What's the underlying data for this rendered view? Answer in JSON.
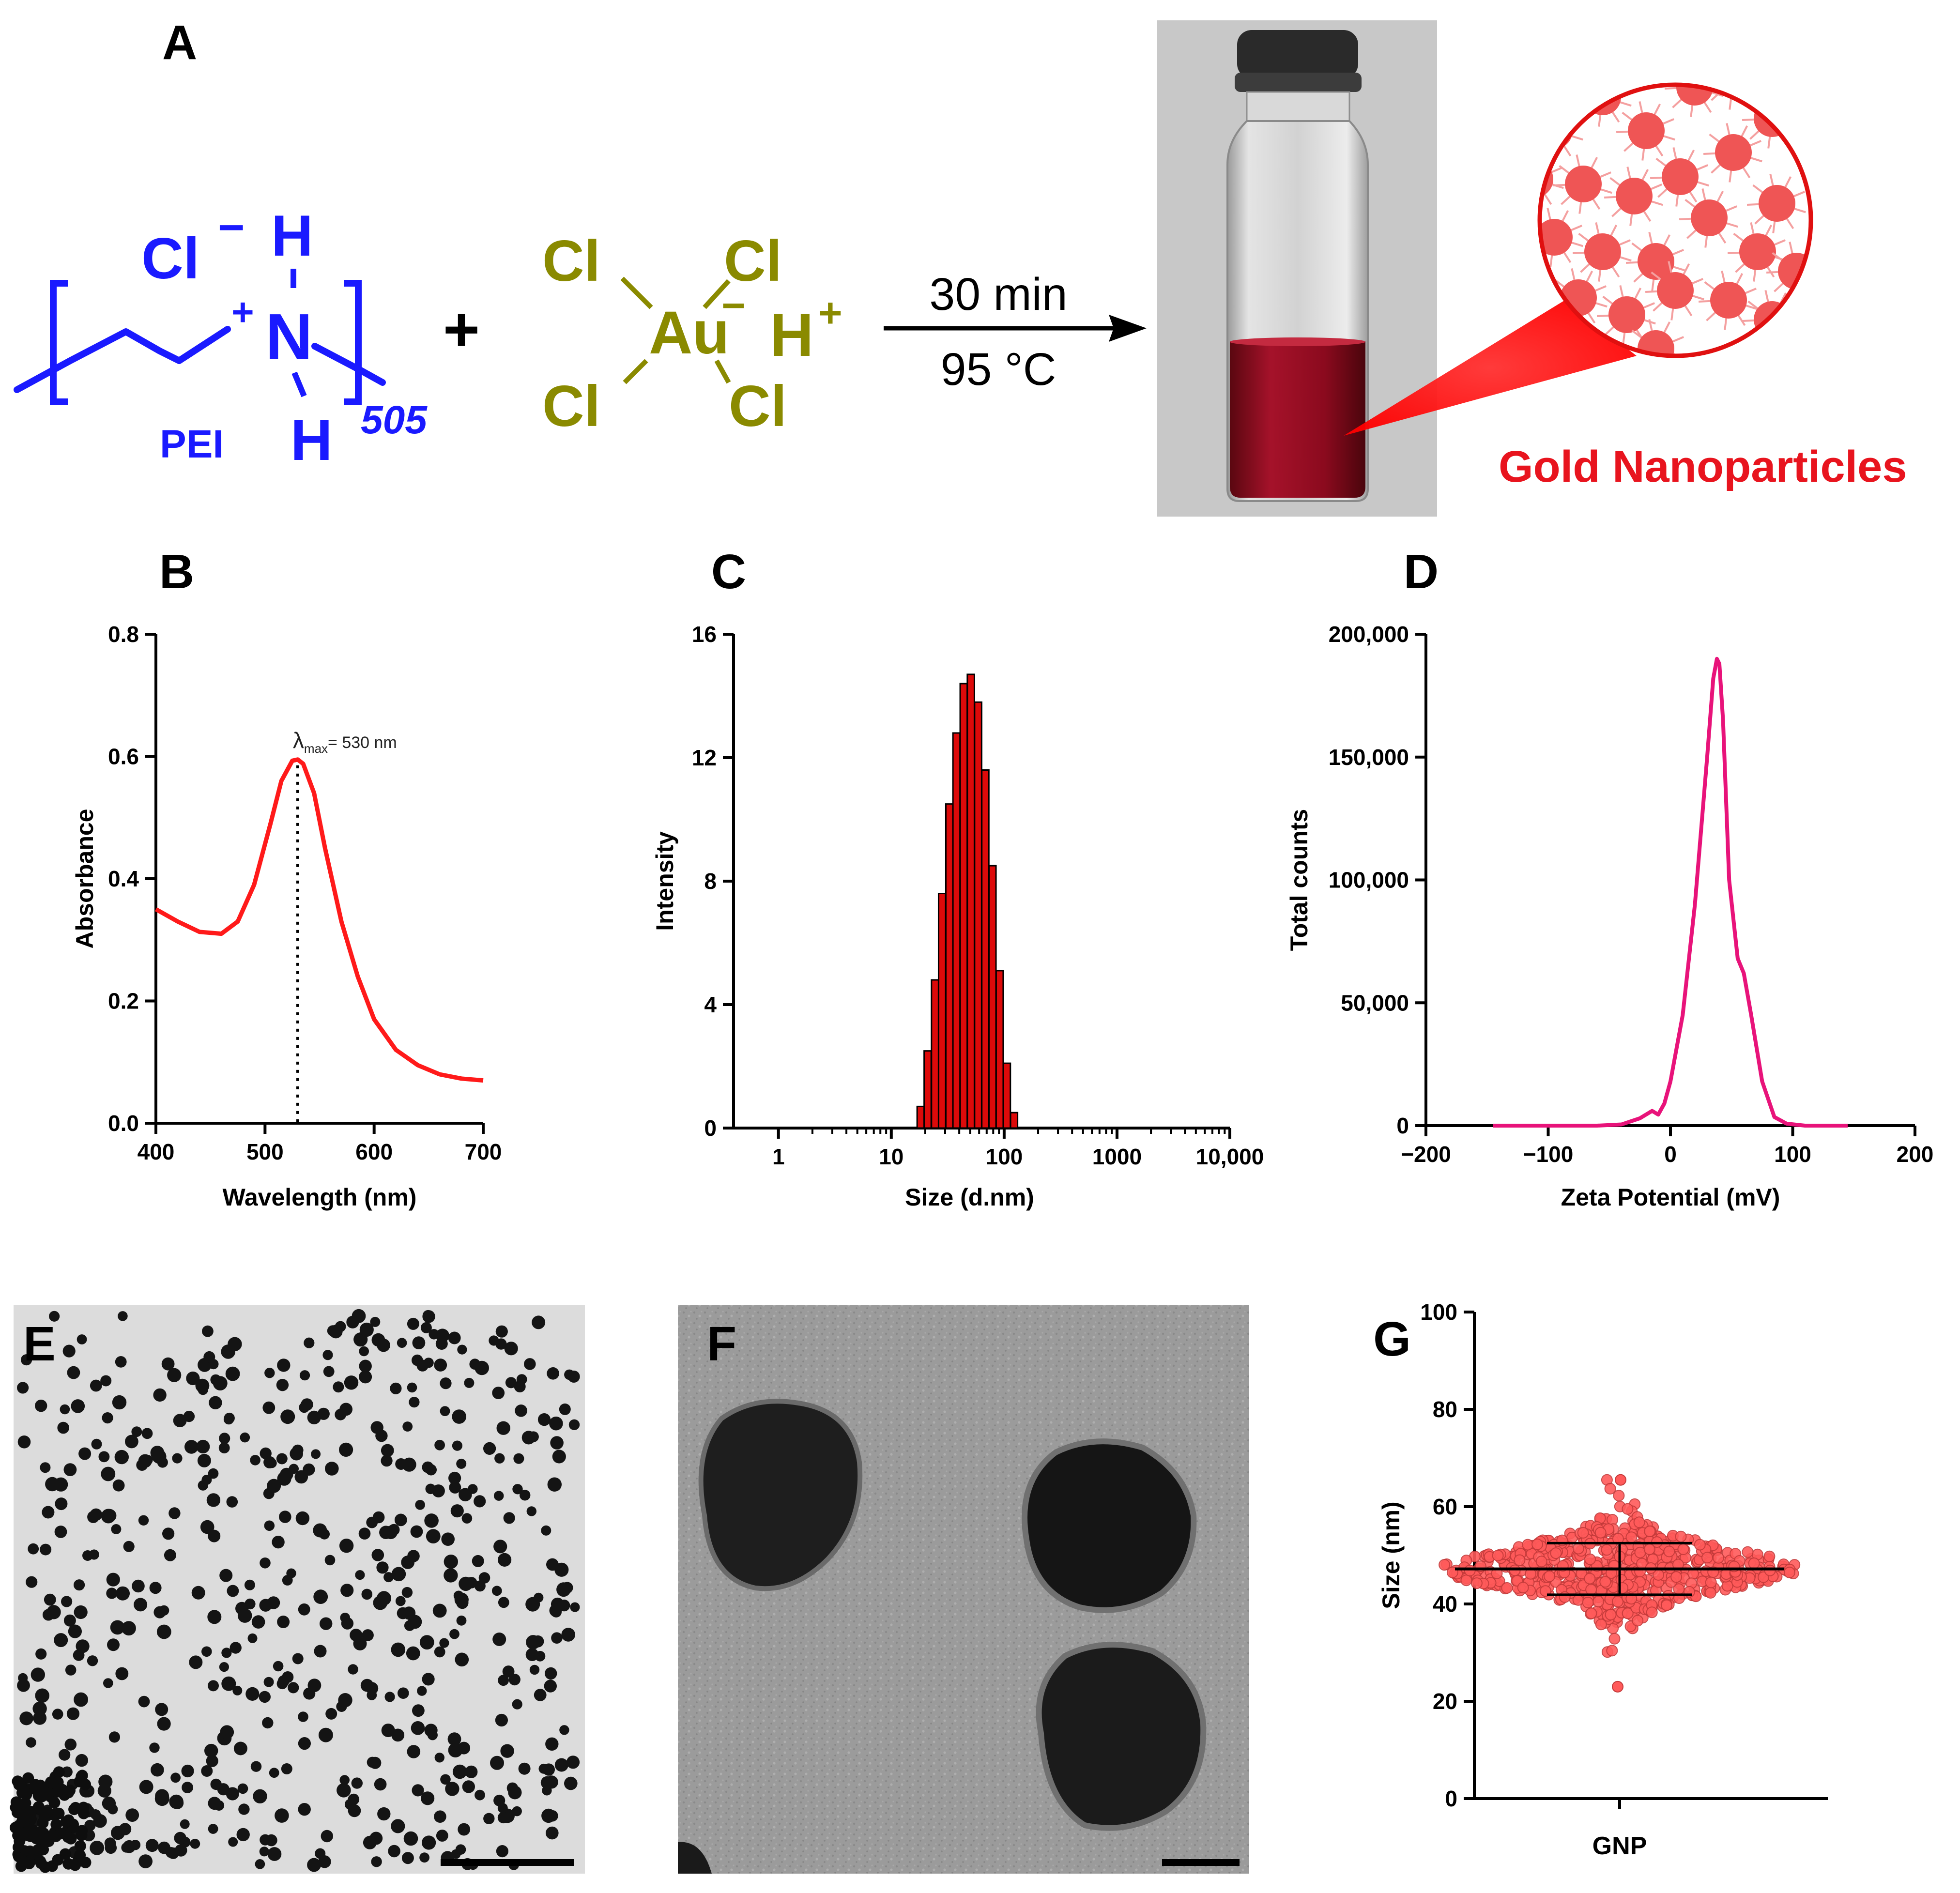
{
  "panels": {
    "A": {
      "letter": "A",
      "pei": {
        "chloride": "Cl",
        "chloride_charge": "−",
        "h_top": "H",
        "plus": "+",
        "n": "N",
        "h_bottom": "H",
        "label": "PEI",
        "subscript": "505"
      },
      "plus_sign": "+",
      "gold_salt": {
        "cl1": "Cl",
        "cl2": "Cl",
        "cl3": "Cl",
        "cl4": "Cl",
        "au": "Au",
        "au_charge": "−",
        "h": "H",
        "h_charge": "+"
      },
      "condition_time": "30 min",
      "condition_temp": "95 °C",
      "product_label": "Gold Nanoparticles",
      "colors": {
        "pei": "#1a1aff",
        "haucl4": "#8a8a00",
        "gold": "#e8141e",
        "solution": "#8b0a1e"
      }
    },
    "E": {
      "letter": "E"
    },
    "F": {
      "letter": "F"
    }
  },
  "chart_data": [
    {
      "panel": "B",
      "type": "line",
      "title": "",
      "xlabel": "Wavelength (nm)",
      "ylabel": "Absorbance",
      "xlim": [
        400,
        700
      ],
      "ylim": [
        0,
        0.8
      ],
      "xticks": [
        "400",
        "500",
        "600",
        "700"
      ],
      "yticks": [
        "0.0",
        "0.2",
        "0.4",
        "0.6",
        "0.8"
      ],
      "annotation": {
        "symbol": "λ",
        "sub": "max",
        "text": "= 530 nm",
        "x": 530
      },
      "color": "#ff1a1a",
      "x": [
        400,
        420,
        440,
        460,
        475,
        490,
        505,
        515,
        525,
        530,
        535,
        545,
        555,
        570,
        585,
        600,
        620,
        640,
        660,
        680,
        700
      ],
      "y": [
        0.35,
        0.33,
        0.313,
        0.31,
        0.33,
        0.39,
        0.49,
        0.56,
        0.593,
        0.595,
        0.588,
        0.54,
        0.45,
        0.33,
        0.24,
        0.17,
        0.12,
        0.095,
        0.08,
        0.073,
        0.07
      ]
    },
    {
      "panel": "C",
      "type": "bar",
      "title": "",
      "xlabel": "Size (d.nm)",
      "ylabel": "Intensity",
      "xscale": "log",
      "xlim": [
        0.4,
        10000
      ],
      "ylim": [
        0,
        16
      ],
      "xticks": [
        "1",
        "10",
        "100",
        "1000",
        "10,000"
      ],
      "yticks": [
        "0",
        "4",
        "8",
        "12",
        "16"
      ],
      "color": "#dd0a0a",
      "x": [
        18.2,
        21.0,
        24.4,
        28.2,
        32.7,
        37.8,
        43.8,
        50.7,
        58.8,
        68.1,
        78.8,
        91.3,
        105.7,
        122.4
      ],
      "values": [
        0.7,
        2.5,
        4.8,
        7.6,
        10.5,
        12.8,
        14.4,
        14.7,
        13.8,
        11.6,
        8.5,
        5.1,
        2.1,
        0.5
      ]
    },
    {
      "panel": "D",
      "type": "line",
      "title": "",
      "xlabel": "Zeta Potential (mV)",
      "ylabel": "Total counts",
      "xlim": [
        -200,
        200
      ],
      "ylim": [
        0,
        200000
      ],
      "xticks": [
        "−200",
        "−100",
        "0",
        "100",
        "200"
      ],
      "yticks": [
        "0",
        "50,000",
        "100,000",
        "150,000",
        "200,000"
      ],
      "color": "#e8137a",
      "x": [
        -145,
        -60,
        -40,
        -25,
        -15,
        -10,
        -5,
        0,
        10,
        20,
        30,
        35,
        38,
        40,
        43,
        48,
        55,
        60,
        66,
        75,
        85,
        95,
        110,
        145
      ],
      "y": [
        0,
        0,
        500,
        3000,
        6000,
        4500,
        9000,
        18000,
        45000,
        90000,
        150000,
        182000,
        190000,
        188000,
        165000,
        100000,
        68000,
        62000,
        45000,
        18000,
        3500,
        800,
        0,
        0
      ]
    },
    {
      "panel": "G",
      "type": "scatter",
      "title": "",
      "xlabel": "",
      "ylabel": "Size (nm)",
      "categories": [
        "GNP"
      ],
      "ylim": [
        0,
        100
      ],
      "yticks": [
        "0",
        "20",
        "40",
        "60",
        "80",
        "100"
      ],
      "color": "#ff5a5a",
      "mean": 47.2,
      "sd": 5.3,
      "min": 23,
      "max": 65.5
    }
  ]
}
